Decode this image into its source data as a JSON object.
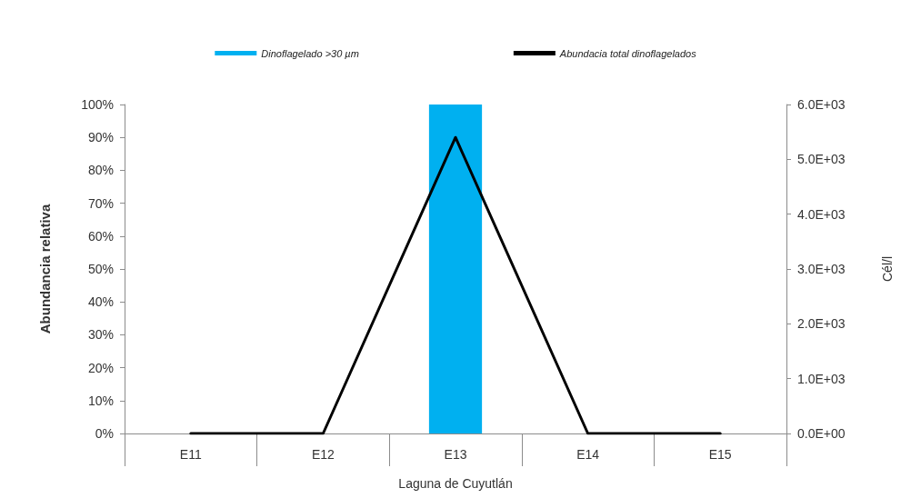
{
  "chart_data": {
    "type": "bar",
    "xlabel": "Laguna de Cuyutlán",
    "ylabel": "Abundancia relativa",
    "y2label": "Cél/l",
    "categories": [
      "E11",
      "E12",
      "E13",
      "E14",
      "E15"
    ],
    "series": [
      {
        "name": "Dinoflagelado >30 µm",
        "color": "#00b0f0",
        "values": [
          0,
          0,
          100,
          0,
          0
        ]
      },
      {
        "name": "Abundacia total dinoflagelados",
        "type": "line",
        "axis": "y2",
        "color": "#000000",
        "values": [
          0,
          0,
          5400,
          0,
          0
        ]
      }
    ],
    "ylim": [
      0,
      100
    ],
    "yticks": [
      {
        "value": 0,
        "label": "0%"
      },
      {
        "value": 10,
        "label": "10%"
      },
      {
        "value": 20,
        "label": "20%"
      },
      {
        "value": 30,
        "label": "30%"
      },
      {
        "value": 40,
        "label": "40%"
      },
      {
        "value": 50,
        "label": "50%"
      },
      {
        "value": 60,
        "label": "60%"
      },
      {
        "value": 70,
        "label": "70%"
      },
      {
        "value": 80,
        "label": "80%"
      },
      {
        "value": 90,
        "label": "90%"
      },
      {
        "value": 100,
        "label": "100%"
      }
    ],
    "y2lim": [
      0,
      6000
    ],
    "y2ticks": [
      {
        "value": 0,
        "label": "0.0E+00"
      },
      {
        "value": 1000,
        "label": "1.0E+03"
      },
      {
        "value": 2000,
        "label": "2.0E+03"
      },
      {
        "value": 3000,
        "label": "3.0E+03"
      },
      {
        "value": 4000,
        "label": "4.0E+03"
      },
      {
        "value": 5000,
        "label": "5.0E+03"
      },
      {
        "value": 6000,
        "label": "6.0E+03"
      }
    ],
    "legend": "top",
    "marker": "none"
  }
}
